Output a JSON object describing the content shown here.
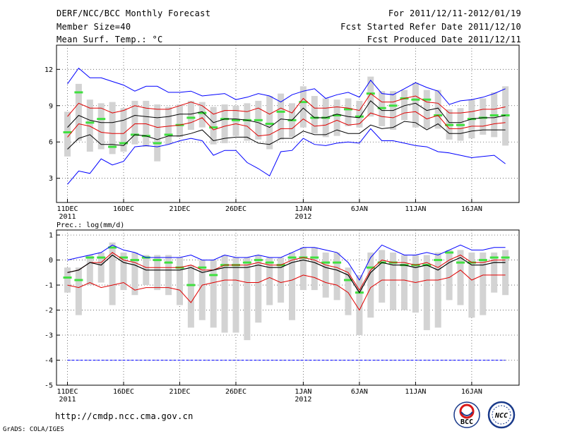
{
  "header": {
    "title": "DERF/NCC/BCC Monthly Forecast",
    "member_size": "Member Size=40",
    "variable1": "Mean Surf. Temp.: °C",
    "period": "For 2011/12/11-2012/01/19",
    "started": "Fcst Started Refer Date 2011/12/10",
    "produced": "Fcst Produced Date 2011/12/11"
  },
  "footer": {
    "url": "http://cmdp.ncc.cma.gov.cn",
    "grads": "GrADS: COLA/IGES",
    "logo_bcc": "BCC",
    "logo_ncc": "NCC"
  },
  "colors": {
    "box": "#d3d3d3",
    "median": "#40e040",
    "mean": "#000000",
    "spread": "#e00000",
    "extreme": "#0000ff"
  },
  "chart_data": [
    {
      "type": "line",
      "title": "Mean Surf. Temp.: °C",
      "ylim": [
        1,
        14
      ],
      "yticks": [
        3,
        6,
        9,
        12
      ],
      "x_tick_labels": [
        {
          "day": 0,
          "label": "11DEC",
          "sub": "2011"
        },
        {
          "day": 5,
          "label": "16DEC",
          "sub": ""
        },
        {
          "day": 10,
          "label": "21DEC",
          "sub": ""
        },
        {
          "day": 15,
          "label": "26DEC",
          "sub": ""
        },
        {
          "day": 21,
          "label": "1JAN",
          "sub": "2012"
        },
        {
          "day": 26,
          "label": "6JAN",
          "sub": ""
        },
        {
          "day": 31,
          "label": "11JAN",
          "sub": ""
        },
        {
          "day": 36,
          "label": "16JAN",
          "sub": ""
        }
      ],
      "series": [
        {
          "name": "max",
          "values": [
            10.8,
            12.1,
            11.3,
            11.3,
            11,
            10.7,
            10.2,
            10.6,
            10.6,
            10.1,
            10.1,
            10.2,
            9.8,
            9.9,
            10,
            9.5,
            9.7,
            10,
            9.8,
            9.3,
            9.9,
            10.2,
            10.4,
            9.6,
            9.9,
            10.1,
            9.7,
            11.1,
            10,
            9.9,
            10.4,
            10.9,
            10.5,
            10.2,
            9.1,
            9.4,
            9.5,
            9.7,
            10,
            10.4
          ]
        },
        {
          "name": "upper",
          "values": [
            8.1,
            9.2,
            8.8,
            8.8,
            8.4,
            8.6,
            9,
            8.8,
            8.7,
            8.7,
            9,
            9.3,
            9,
            8.3,
            8.6,
            8.6,
            8.5,
            8.8,
            8.3,
            8.8,
            8.4,
            9.6,
            8.8,
            8.8,
            8.9,
            8.8,
            8.6,
            10,
            9.3,
            9.3,
            9.6,
            9.8,
            9.3,
            9.2,
            8.4,
            8.4,
            8.5,
            8.7,
            8.7,
            8.9
          ]
        },
        {
          "name": "mean",
          "values": [
            7.2,
            8.2,
            7.8,
            7.6,
            7.6,
            7.8,
            8.2,
            8.1,
            8,
            8.1,
            8.3,
            8.3,
            8.5,
            7.6,
            7.9,
            7.9,
            7.8,
            7.6,
            7.2,
            7.9,
            7.8,
            8.8,
            8,
            8,
            8.3,
            8.1,
            8,
            9.4,
            8.6,
            8.6,
            9,
            9.2,
            8.6,
            8.8,
            7.6,
            7.6,
            7.9,
            8,
            8,
            8.2
          ]
        },
        {
          "name": "lower",
          "values": [
            6.4,
            7.5,
            7.3,
            6.8,
            6.7,
            6.7,
            7.5,
            7.5,
            7.2,
            7.3,
            7.4,
            7.6,
            8,
            7,
            7.3,
            7.5,
            7.3,
            6.5,
            6.6,
            7.1,
            7.1,
            7.9,
            7.3,
            7.4,
            7.8,
            7.4,
            7.5,
            8.4,
            8.1,
            8,
            8.4,
            8.5,
            7.9,
            8.2,
            7.1,
            7.1,
            7.3,
            7.3,
            7.5,
            7.6
          ]
        },
        {
          "name": "min",
          "values": [
            5.4,
            6.3,
            6.6,
            5.8,
            5.8,
            5.7,
            6.6,
            6.5,
            6.2,
            6.5,
            6.5,
            6.7,
            7,
            6.1,
            6.3,
            6.4,
            6.4,
            5.9,
            5.8,
            6.3,
            6.3,
            6.9,
            6.6,
            6.6,
            7,
            6.7,
            6.7,
            7.4,
            7.1,
            7.2,
            7.7,
            7.6,
            7,
            7.5,
            6.7,
            6.7,
            6.9,
            7,
            7,
            7
          ]
        },
        {
          "name": "extreme_max",
          "values": [
            10.8,
            12.1,
            11.3,
            11.3,
            11,
            10.7,
            10.2,
            10.6,
            10.6,
            10.1,
            10.1,
            10.2,
            9.8,
            9.9,
            10,
            9.5,
            9.7,
            10,
            9.8,
            9.3,
            9.9,
            10.2,
            10.4,
            9.6,
            9.9,
            10.1,
            9.7,
            11.1,
            10,
            9.9,
            10.4,
            10.9,
            10.5,
            10.2,
            9.1,
            9.4,
            9.5,
            9.7,
            10,
            10.4
          ]
        },
        {
          "name": "extreme_min",
          "values": [
            2.5,
            3.6,
            3.4,
            4.6,
            4.1,
            4.4,
            5.6,
            5.7,
            5.6,
            5.8,
            6.1,
            6.3,
            6.1,
            4.9,
            5.3,
            5.3,
            4.3,
            3.8,
            3.2,
            5.2,
            5.3,
            6.3,
            5.8,
            5.7,
            5.9,
            6,
            5.9,
            7.1,
            6.1,
            6.1,
            5.9,
            5.7,
            5.6,
            5.2,
            5.1,
            4.9,
            4.7,
            4.8,
            4.9,
            4.2
          ]
        },
        {
          "name": "median",
          "values": [
            6.8,
            10.1,
            7.6,
            7.9,
            5.6,
            5.9,
            6.6,
            6.5,
            5.9,
            6.6,
            7.4,
            8,
            8.4,
            7.2,
            7.9,
            7.8,
            7.8,
            7.8,
            7.5,
            8.5,
            7.8,
            9.3,
            8,
            8,
            8.2,
            8.7,
            8.1,
            10,
            8.8,
            9,
            9.6,
            9.5,
            9.5,
            8.2,
            7.4,
            7.4,
            7.9,
            8,
            8.2,
            8.2
          ]
        },
        {
          "name": "box_top",
          "values": [
            8.5,
            10.8,
            9.5,
            9.2,
            9.3,
            8.8,
            9.4,
            9.4,
            9.1,
            8.9,
            9.1,
            9.4,
            9.3,
            8.9,
            9.1,
            9,
            9.2,
            9.4,
            9.8,
            10,
            9.2,
            10.6,
            9.8,
            9.6,
            9.5,
            9.6,
            9.4,
            11.4,
            10.2,
            10.2,
            10.3,
            10.9,
            10.3,
            10.3,
            8.7,
            8.8,
            9.5,
            9.6,
            10.1,
            10.6
          ]
        },
        {
          "name": "box_bottom",
          "values": [
            4.8,
            6.1,
            5.2,
            5.4,
            5,
            5.2,
            5.8,
            5.6,
            4.4,
            5.8,
            6.4,
            7,
            7.2,
            5.8,
            5.9,
            6.5,
            6.1,
            6.2,
            5.4,
            6.2,
            6.4,
            7.2,
            6.7,
            6.4,
            6.5,
            7.3,
            7.2,
            8.1,
            7.3,
            7,
            7.8,
            7.2,
            7.1,
            7.1,
            6.2,
            6.1,
            6.3,
            6.6,
            6.4,
            5.7
          ]
        }
      ]
    },
    {
      "type": "line",
      "title": "Prec.: log(mm/d)",
      "ylim": [
        -5,
        1.2
      ],
      "yticks": [
        -5,
        -4,
        -3,
        -2,
        -1,
        0,
        1
      ],
      "x_tick_labels": [
        {
          "day": 0,
          "label": "11DEC",
          "sub": "2011"
        },
        {
          "day": 5,
          "label": "16DEC",
          "sub": ""
        },
        {
          "day": 10,
          "label": "21DEC",
          "sub": ""
        },
        {
          "day": 15,
          "label": "26DEC",
          "sub": ""
        },
        {
          "day": 21,
          "label": "1JAN",
          "sub": "2012"
        },
        {
          "day": 26,
          "label": "6JAN",
          "sub": ""
        },
        {
          "day": 31,
          "label": "11JAN",
          "sub": ""
        },
        {
          "day": 36,
          "label": "16JAN",
          "sub": ""
        }
      ],
      "series": [
        {
          "name": "max",
          "values": [
            0,
            0.1,
            0.2,
            0.3,
            0.6,
            0.4,
            0.3,
            0.1,
            0.1,
            0.1,
            0.1,
            0.2,
            0,
            0,
            0.2,
            0.1,
            0.1,
            0.2,
            0.1,
            0.1,
            0.3,
            0.5,
            0.5,
            0.4,
            0.3,
            -0.1,
            -0.8,
            0.1,
            0.6,
            0.4,
            0.2,
            0.2,
            0.3,
            0.2,
            0.4,
            0.6,
            0.4,
            0.4,
            0.5,
            0.5
          ]
        },
        {
          "name": "upper",
          "values": [
            -0.5,
            -0.4,
            -0.1,
            -0.1,
            0.3,
            0,
            -0.1,
            -0.3,
            -0.3,
            -0.3,
            -0.3,
            -0.2,
            -0.4,
            -0.4,
            -0.2,
            -0.2,
            -0.2,
            -0.1,
            -0.2,
            -0.2,
            0,
            0.1,
            0,
            -0.2,
            -0.3,
            -0.5,
            -1.2,
            -0.4,
            0,
            -0.1,
            -0.1,
            -0.2,
            -0.1,
            -0.3,
            0,
            0.2,
            -0.1,
            -0.1,
            0,
            0
          ]
        },
        {
          "name": "mean",
          "values": [
            -0.5,
            -0.4,
            -0.1,
            -0.2,
            0.2,
            -0.1,
            -0.2,
            -0.4,
            -0.4,
            -0.4,
            -0.4,
            -0.3,
            -0.5,
            -0.4,
            -0.3,
            -0.3,
            -0.3,
            -0.2,
            -0.3,
            -0.3,
            -0.1,
            0,
            -0.1,
            -0.3,
            -0.4,
            -0.6,
            -1.3,
            -0.5,
            -0.1,
            -0.2,
            -0.2,
            -0.3,
            -0.2,
            -0.4,
            -0.1,
            0.1,
            -0.2,
            -0.2,
            -0.1,
            -0.1
          ]
        },
        {
          "name": "lower",
          "values": [
            -1,
            -1.1,
            -0.9,
            -1.1,
            -1,
            -0.9,
            -1.2,
            -1.1,
            -1.1,
            -1.1,
            -1.2,
            -1.7,
            -1,
            -0.9,
            -0.8,
            -0.8,
            -0.9,
            -0.9,
            -0.7,
            -0.9,
            -0.8,
            -0.6,
            -0.7,
            -0.9,
            -1,
            -1.3,
            -2,
            -1.1,
            -0.8,
            -0.8,
            -0.8,
            -0.9,
            -0.8,
            -0.8,
            -0.7,
            -0.4,
            -0.8,
            -0.6,
            -0.6,
            -0.6
          ]
        },
        {
          "name": "min",
          "values": [
            -1,
            -1.1,
            -0.9,
            -1.1,
            -1,
            -0.9,
            -1.2,
            -1.1,
            -1.1,
            -1.1,
            -1.2,
            -1.7,
            -1,
            -0.9,
            -0.8,
            -0.8,
            -0.9,
            -0.9,
            -0.7,
            -0.9,
            -0.8,
            -0.6,
            -0.7,
            -0.9,
            -1,
            -1.3,
            -2,
            -1.1,
            -0.8,
            -0.8,
            -0.8,
            -0.9,
            -0.8,
            -0.8,
            -0.7,
            -0.4,
            -0.8,
            -0.6,
            -0.6,
            -0.6
          ]
        },
        {
          "name": "extreme_max",
          "values": [
            0,
            0.1,
            0.2,
            0.3,
            0.6,
            0.4,
            0.3,
            0.1,
            0.1,
            0.1,
            0.1,
            0.2,
            0,
            0,
            0.2,
            0.1,
            0.1,
            0.2,
            0.1,
            0.1,
            0.3,
            0.5,
            0.5,
            0.4,
            0.3,
            -0.1,
            -0.8,
            0.1,
            0.6,
            0.4,
            0.2,
            0.2,
            0.3,
            0.2,
            0.4,
            0.6,
            0.4,
            0.4,
            0.5,
            0.5
          ]
        },
        {
          "name": "extreme_min",
          "values": [
            -4,
            -4,
            -4,
            -4,
            -4,
            -4,
            -4,
            -4,
            -4,
            -4,
            -4,
            -4,
            -4,
            -4,
            -4,
            -4,
            -4,
            -4,
            -4,
            -4,
            -4,
            -4,
            -4,
            -4,
            -4,
            -4,
            -4,
            -4,
            -4,
            -4,
            -4,
            -4,
            -4,
            -4,
            -4,
            -4,
            -4,
            -4,
            -4,
            -4
          ]
        },
        {
          "name": "median",
          "values": [
            -0.7,
            -0.8,
            0.1,
            0.1,
            0.5,
            0.1,
            0,
            0.1,
            0,
            -0.1,
            -0.3,
            -1,
            -0.3,
            -0.6,
            -0.2,
            -0.2,
            -0.1,
            0,
            -0.1,
            -0.2,
            0.1,
            0.1,
            0.1,
            -0.1,
            -0.1,
            -0.8,
            -1.3,
            -0.3,
            -0.1,
            -0.1,
            -0.2,
            -0.2,
            -0.2,
            0,
            0.3,
            -0.1,
            -0.1,
            0,
            0.1,
            0.1
          ]
        },
        {
          "name": "box_top",
          "values": [
            -0.3,
            -0.3,
            0.2,
            0.3,
            0.7,
            0.3,
            0.3,
            0.2,
            0.2,
            0.2,
            0.1,
            -0.2,
            0,
            0,
            0.2,
            0.1,
            0.1,
            0.2,
            0.1,
            0.1,
            0.3,
            0.5,
            0.5,
            0.3,
            0.3,
            -0.3,
            -0.6,
            0.3,
            0.4,
            0.3,
            0.2,
            0.2,
            0.2,
            0.3,
            0.4,
            0.4,
            0.3,
            0.3,
            0.3,
            0.4
          ]
        },
        {
          "name": "box_bottom",
          "values": [
            -1.3,
            -2.2,
            -1,
            -0.9,
            -1.8,
            -1.2,
            -1.4,
            -1,
            -1.2,
            -1.4,
            -1.8,
            -2.7,
            -2.4,
            -2.7,
            -2.9,
            -2.9,
            -3.2,
            -2.5,
            -1.8,
            -1.7,
            -2.4,
            -1.2,
            -1.2,
            -1.5,
            -1.6,
            -2.2,
            -3,
            -2.3,
            -1.7,
            -2,
            -2,
            -2.1,
            -2.8,
            -2.7,
            -1.6,
            -1.8,
            -2.3,
            -2.2,
            -1.3,
            -1.4
          ]
        }
      ]
    }
  ]
}
